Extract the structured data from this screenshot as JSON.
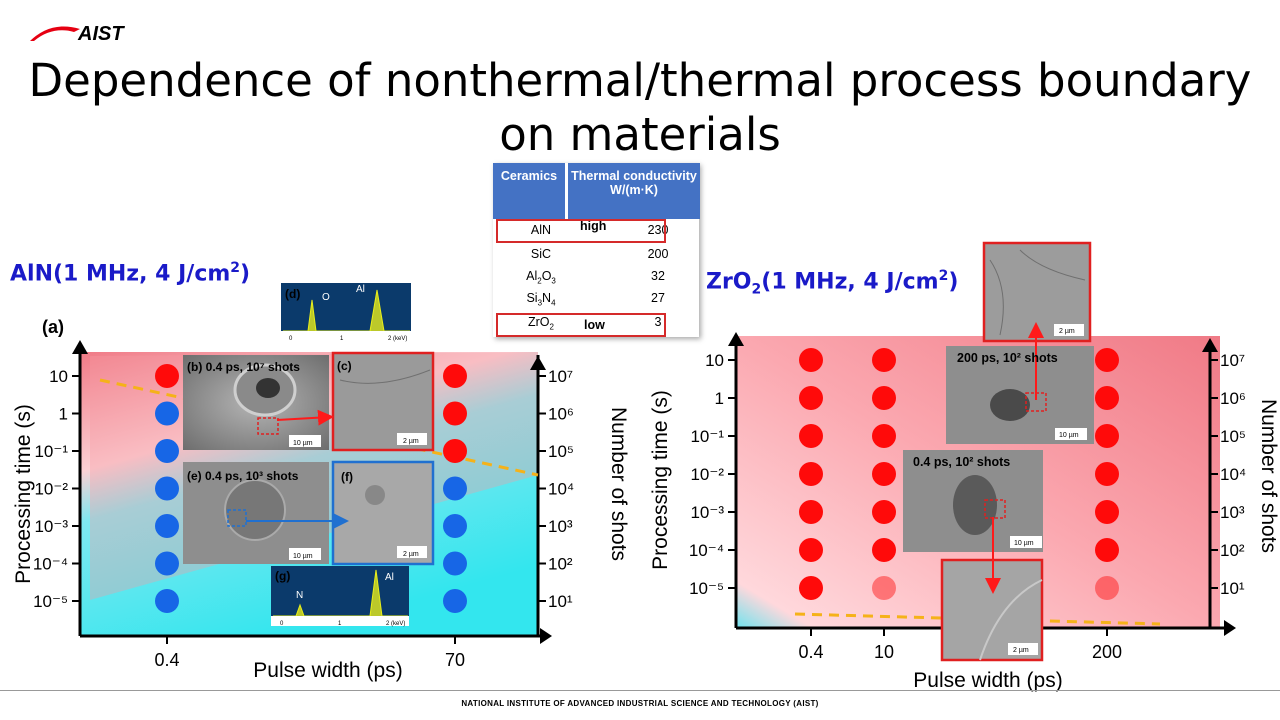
{
  "logo_text": "AIST",
  "title_line1": "Dependence of nonthermal/thermal process boundary",
  "title_line2": "on materials",
  "footer": "NATIONAL INSTITUTE OF ADVANCED INDUSTRIAL SCIENCE AND TECHNOLOGY (AIST)",
  "colors": {
    "cold": "#33e6ee",
    "hot": "#f07a86",
    "dot_blue": "#1766e6",
    "dot_red": "#ff0a0a",
    "boundary": "#f5b219",
    "arrow_red": "#ff1a1a",
    "arrow_blue": "#2070d0",
    "edx_bg": "#0b3a6b",
    "edx_peak": "#e8ee1a"
  },
  "table": {
    "header_col1": "Ceramics",
    "header_col2": "Thermal conductivity W/(m·K)",
    "high_label": "high",
    "low_label": "low",
    "rows": [
      {
        "name": "AlN",
        "sub": "",
        "name2": "",
        "sub2": "",
        "value": "230"
      },
      {
        "name": "SiC",
        "sub": "",
        "name2": "",
        "sub2": "",
        "value": "200"
      },
      {
        "name": "Al",
        "sub": "2",
        "name2": "O",
        "sub2": "3",
        "value": "32"
      },
      {
        "name": "Si",
        "sub": "3",
        "name2": "N",
        "sub2": "4",
        "value": "27"
      },
      {
        "name": "ZrO",
        "sub": "2",
        "name2": "",
        "sub2": "",
        "value": "3"
      }
    ]
  },
  "left_panel": {
    "heading_main": "AlN(1 MHz, 4 J/cm",
    "heading_sup": "2",
    "heading_end": ")",
    "panel_label": "(a)",
    "ylabel": "Processing time (s)",
    "y2label": "Number of shots",
    "xlabel": "Pulse width (ps)",
    "insets": {
      "b": "(b) 0.4 ps, 10⁷ shots",
      "c": "(c)",
      "e": "(e) 0.4 ps, 10³ shots",
      "f": "(f)",
      "d": "(d)",
      "g": "(g)",
      "scale_10um": "10 µm",
      "scale_2um": "2 µm",
      "edx_d_O": "O",
      "edx_d_Al": "Al",
      "edx_g_N": "N",
      "edx_g_Al": "Al",
      "edx_ticks": [
        "0",
        "1",
        "2 (keV)"
      ]
    }
  },
  "right_panel": {
    "heading_main": "ZrO",
    "heading_sub": "2",
    "heading_mid": "(1 MHz, 4 J/cm",
    "heading_sup": "2",
    "heading_end": ")",
    "ylabel": "Processing time (s)",
    "y2label": "Number of shots",
    "xlabel": "Pulse width (ps)",
    "insets": {
      "top": "200 ps, 10² shots",
      "mid": "0.4 ps, 10² shots",
      "scale_10um": "10 µm",
      "scale_2um": "2 µm"
    }
  },
  "chart_data": [
    {
      "type": "scatter",
      "title": "AlN(1 MHz, 4 J/cm²)",
      "xlabel": "Pulse width (ps)",
      "ylabel": "Processing time (s)",
      "y2label": "Number of shots",
      "x_ticks": [
        "0.4",
        "70"
      ],
      "y_ticks": [
        "10",
        "1",
        "10⁻¹",
        "10⁻²",
        "10⁻³",
        "10⁻⁴",
        "10⁻⁵"
      ],
      "y2_ticks": [
        "10⁷",
        "10⁶",
        "10⁵",
        "10⁴",
        "10³",
        "10²",
        "10¹"
      ],
      "y_values": [
        10,
        1,
        0.1,
        0.01,
        0.001,
        0.0001,
        1e-05
      ],
      "series": [
        {
          "name": "thermal",
          "x": [
            "0.4",
            "70",
            "70",
            "70"
          ],
          "y": [
            10,
            10,
            1,
            0.1
          ]
        },
        {
          "name": "nonthermal",
          "x": [
            "0.4",
            "0.4",
            "0.4",
            "0.4",
            "0.4",
            "0.4",
            "70",
            "70",
            "70",
            "70"
          ],
          "y": [
            1,
            0.1,
            0.01,
            0.001,
            0.0001,
            1e-05,
            0.01,
            0.001,
            0.0001,
            1e-05
          ]
        }
      ]
    },
    {
      "type": "scatter",
      "title": "ZrO₂(1 MHz, 4 J/cm²)",
      "xlabel": "Pulse width (ps)",
      "ylabel": "Processing time (s)",
      "y2label": "Number of shots",
      "x_ticks": [
        "0.4",
        "10",
        "200"
      ],
      "y_ticks": [
        "10",
        "1",
        "10⁻¹",
        "10⁻²",
        "10⁻³",
        "10⁻⁴",
        "10⁻⁵"
      ],
      "y2_ticks": [
        "10⁷",
        "10⁶",
        "10⁵",
        "10⁴",
        "10³",
        "10²",
        "10¹"
      ],
      "y_values": [
        10,
        1,
        0.1,
        0.01,
        0.001,
        0.0001,
        1e-05
      ],
      "series": [
        {
          "name": "thermal",
          "x": [
            "0.4",
            "0.4",
            "0.4",
            "0.4",
            "0.4",
            "0.4",
            "0.4",
            "10",
            "10",
            "10",
            "10",
            "10",
            "10",
            "10",
            "200",
            "200",
            "200",
            "200",
            "200",
            "200",
            "200"
          ],
          "y": [
            10,
            1,
            0.1,
            0.01,
            0.001,
            0.0001,
            1e-05,
            10,
            1,
            0.1,
            0.01,
            0.001,
            0.0001,
            1e-05,
            10,
            1,
            0.1,
            0.01,
            0.001,
            0.0001,
            1e-05
          ]
        }
      ]
    }
  ]
}
